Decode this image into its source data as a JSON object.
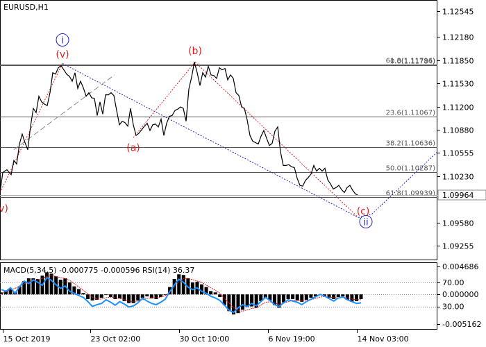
{
  "chart_data": {
    "type": "line",
    "symbol_label": "EURUSD,H1",
    "price_axis": {
      "range": [
        1.0905,
        1.127
      ],
      "ticks": [
        {
          "value": 1.12545,
          "label": "1.12545"
        },
        {
          "value": 1.1218,
          "label": "1.12180"
        },
        {
          "value": 1.1185,
          "label": "1.11850"
        },
        {
          "value": 1.1153,
          "label": "1.11530"
        },
        {
          "value": 1.112,
          "label": "1.11200"
        },
        {
          "value": 1.1088,
          "label": "1.10880"
        },
        {
          "value": 1.10555,
          "label": "1.10555"
        },
        {
          "value": 1.1023,
          "label": "1.10230"
        },
        {
          "value": 1.0958,
          "label": "1.09580"
        },
        {
          "value": 1.09255,
          "label": "1.09255"
        }
      ],
      "current_price": {
        "value": 1.09964,
        "label": "1.09964"
      }
    },
    "time_axis": {
      "range": [
        0,
        630
      ],
      "ticks": [
        {
          "t": 4,
          "label": "15 Oct 2019"
        },
        {
          "t": 130,
          "label": "23 Oct 02:00"
        },
        {
          "t": 258,
          "label": "30 Oct 10:00"
        },
        {
          "t": 386,
          "label": "6 Nov 19:00"
        },
        {
          "t": 514,
          "label": "14 Nov 03:00"
        }
      ]
    },
    "fibonacci_levels": [
      {
        "value": 1.11796,
        "label": "61.8(1.11796)"
      },
      {
        "value": 1.11784,
        "label": "0.0(1.11784)"
      },
      {
        "value": 1.11067,
        "label": "23.6(1.11067)"
      },
      {
        "value": 1.10636,
        "label": "38.2(1.10636)"
      },
      {
        "value": 1.10287,
        "label": "50.0(1.10287)"
      },
      {
        "value": 1.09939,
        "label": "61.8(1.09939)"
      }
    ],
    "wave_labels": [
      {
        "text": "i",
        "t": 90,
        "price": 1.1214,
        "color": "#2020c8",
        "circled": true
      },
      {
        "text": "ii",
        "t": 527,
        "price": 1.0959,
        "color": "#2020c8",
        "circled": true
      },
      {
        "text": "(v)",
        "t": 90,
        "price": 1.1194,
        "color": "#e02020",
        "circled": false
      },
      {
        "text": "(b)",
        "t": 281,
        "price": 1.1199,
        "color": "#e02020",
        "circled": false
      },
      {
        "text": "(a)",
        "t": 192,
        "price": 1.1063,
        "color": "#e02020",
        "circled": false
      },
      {
        "text": "(c)",
        "t": 523,
        "price": 1.0974,
        "color": "#e02020",
        "circled": false
      },
      {
        "text": "v)",
        "t": 5,
        "price": 1.0978,
        "color": "#e02020",
        "circled": false
      }
    ],
    "price_series": [
      [
        0,
        1.1
      ],
      [
        4,
        1.1028
      ],
      [
        10,
        1.1032
      ],
      [
        16,
        1.1025
      ],
      [
        20,
        1.1045
      ],
      [
        24,
        1.104
      ],
      [
        28,
        1.1068
      ],
      [
        32,
        1.1082
      ],
      [
        36,
        1.107
      ],
      [
        40,
        1.106
      ],
      [
        44,
        1.1093
      ],
      [
        48,
        1.1118
      ],
      [
        52,
        1.1112
      ],
      [
        56,
        1.1135
      ],
      [
        60,
        1.1127
      ],
      [
        64,
        1.1124
      ],
      [
        68,
        1.1122
      ],
      [
        72,
        1.114
      ],
      [
        76,
        1.1168
      ],
      [
        80,
        1.1166
      ],
      [
        84,
        1.1175
      ],
      [
        88,
        1.1178
      ],
      [
        92,
        1.1172
      ],
      [
        96,
        1.1166
      ],
      [
        100,
        1.1163
      ],
      [
        104,
        1.1156
      ],
      [
        108,
        1.1168
      ],
      [
        112,
        1.1146
      ],
      [
        116,
        1.1156
      ],
      [
        120,
        1.1147
      ],
      [
        124,
        1.1135
      ],
      [
        128,
        1.114
      ],
      [
        132,
        1.1133
      ],
      [
        136,
        1.1132
      ],
      [
        140,
        1.1108
      ],
      [
        144,
        1.1127
      ],
      [
        148,
        1.111
      ],
      [
        152,
        1.1137
      ],
      [
        156,
        1.1137
      ],
      [
        160,
        1.114
      ],
      [
        164,
        1.1136
      ],
      [
        168,
        1.1115
      ],
      [
        172,
        1.1095
      ],
      [
        176,
        1.11
      ],
      [
        180,
        1.1098
      ],
      [
        184,
        1.1093
      ],
      [
        188,
        1.1118
      ],
      [
        192,
        1.1095
      ],
      [
        196,
        1.108
      ],
      [
        200,
        1.1083
      ],
      [
        204,
        1.1088
      ],
      [
        208,
        1.1093
      ],
      [
        212,
        1.1097
      ],
      [
        216,
        1.1087
      ],
      [
        220,
        1.1095
      ],
      [
        224,
        1.1096
      ],
      [
        228,
        1.1092
      ],
      [
        232,
        1.1103
      ],
      [
        236,
        1.108
      ],
      [
        240,
        1.1097
      ],
      [
        244,
        1.1107
      ],
      [
        248,
        1.1108
      ],
      [
        252,
        1.1115
      ],
      [
        256,
        1.1117
      ],
      [
        260,
        1.112
      ],
      [
        264,
        1.1118
      ],
      [
        268,
        1.11
      ],
      [
        272,
        1.1145
      ],
      [
        276,
        1.1162
      ],
      [
        280,
        1.1183
      ],
      [
        284,
        1.1168
      ],
      [
        288,
        1.115
      ],
      [
        292,
        1.1168
      ],
      [
        296,
        1.1162
      ],
      [
        300,
        1.1177
      ],
      [
        304,
        1.1165
      ],
      [
        308,
        1.1164
      ],
      [
        312,
        1.116
      ],
      [
        316,
        1.1175
      ],
      [
        320,
        1.1172
      ],
      [
        324,
        1.1174
      ],
      [
        328,
        1.1158
      ],
      [
        332,
        1.1165
      ],
      [
        336,
        1.116
      ],
      [
        340,
        1.114
      ],
      [
        344,
        1.1136
      ],
      [
        348,
        1.112
      ],
      [
        352,
        1.1118
      ],
      [
        356,
        1.1102
      ],
      [
        360,
        1.108
      ],
      [
        364,
        1.1072
      ],
      [
        368,
        1.107
      ],
      [
        372,
        1.1068
      ],
      [
        376,
        1.1079
      ],
      [
        380,
        1.1087
      ],
      [
        384,
        1.1076
      ],
      [
        388,
        1.1066
      ],
      [
        392,
        1.1069
      ],
      [
        396,
        1.1086
      ],
      [
        400,
        1.1092
      ],
      [
        404,
        1.1057
      ],
      [
        408,
        1.1038
      ],
      [
        412,
        1.1038
      ],
      [
        416,
        1.1039
      ],
      [
        420,
        1.1036
      ],
      [
        424,
        1.1035
      ],
      [
        428,
        1.102
      ],
      [
        432,
        1.101
      ],
      [
        436,
        1.1009
      ],
      [
        440,
        1.1017
      ],
      [
        444,
        1.1021
      ],
      [
        448,
        1.1026
      ],
      [
        452,
        1.1038
      ],
      [
        456,
        1.103
      ],
      [
        460,
        1.1034
      ],
      [
        464,
        1.103
      ],
      [
        468,
        1.1034
      ],
      [
        472,
        1.1018
      ],
      [
        476,
        1.1012
      ],
      [
        480,
        1.1005
      ],
      [
        484,
        1.1007
      ],
      [
        488,
        1.101
      ],
      [
        492,
        1.1004
      ],
      [
        496,
        1.1
      ],
      [
        500,
        1.1007
      ],
      [
        504,
        1.101
      ],
      [
        508,
        1.1003
      ],
      [
        512,
        1.0998
      ],
      [
        516,
        1.0996
      ]
    ],
    "projection_line": [
      [
        516,
        1.0965
      ],
      [
        536,
        1.097
      ],
      [
        630,
        1.1057
      ]
    ],
    "indicator": {
      "label": "MACD(5,34,5) -0.000775 -0.000596 RSI(14) 36.37",
      "right_ticks": [
        {
          "label": "0.004686"
        },
        {
          "label": "70.00"
        },
        {
          "label": "0.000000"
        },
        {
          "label": "30.00"
        },
        {
          "label": "-0.005162"
        }
      ],
      "macd_histogram": [
        0.0003,
        0.0006,
        0.0009,
        0.0004,
        0.0012,
        0.002,
        0.0024,
        0.0024,
        0.0023,
        0.0028,
        0.0033,
        0.0031,
        0.0027,
        0.0022,
        0.0024,
        0.0018,
        0.0012,
        0.0008,
        0.0002,
        -0.0007,
        -0.0009,
        -0.0008,
        -0.0005,
        -0.0001,
        -0.0004,
        -0.0007,
        -0.0006,
        -0.001,
        -0.0013,
        -0.0013,
        -0.0009,
        -0.0005,
        -0.0003,
        -0.0006,
        -0.0007,
        -0.0004,
        -0.0001,
        0.0011,
        0.0023,
        0.003,
        0.0029,
        0.0024,
        0.0018,
        0.0019,
        0.0015,
        0.0011,
        0.0005,
        0.0003,
        -0.0004,
        -0.0016,
        -0.0025,
        -0.003,
        -0.0028,
        -0.0023,
        -0.0019,
        -0.0018,
        -0.002,
        -0.001,
        -0.0006,
        -0.0009,
        -0.0016,
        -0.002,
        -0.0012,
        -0.0007,
        -0.0007,
        -0.0009,
        -0.0011,
        -0.0008,
        -0.0005,
        -0.0003,
        0.0,
        -0.0002,
        -0.0005,
        -0.0007,
        -0.0004,
        -0.0003,
        -0.0008,
        -0.0011,
        -0.001,
        -0.0007
      ],
      "macd_signal": [
        0.0002,
        0.0004,
        0.0007,
        0.0009,
        0.0012,
        0.0016,
        0.0019,
        0.0021,
        0.0022,
        0.0024,
        0.0027,
        0.0028,
        0.0027,
        0.0025,
        0.0024,
        0.0021,
        0.0016,
        0.0011,
        0.0006,
        0.0001,
        -0.0004,
        -0.0007,
        -0.0007,
        -0.0005,
        -0.0004,
        -0.0005,
        -0.0006,
        -0.0008,
        -0.001,
        -0.0011,
        -0.001,
        -0.0008,
        -0.0006,
        -0.0005,
        -0.0005,
        -0.0004,
        -0.0002,
        0.0004,
        0.0011,
        0.0019,
        0.0024,
        0.0024,
        0.0022,
        0.002,
        0.0018,
        0.0014,
        0.001,
        0.0006,
        0.0002,
        -0.0006,
        -0.0013,
        -0.002,
        -0.0024,
        -0.0025,
        -0.0023,
        -0.0021,
        -0.002,
        -0.0016,
        -0.0012,
        -0.0011,
        -0.0013,
        -0.0015,
        -0.0013,
        -0.0011,
        -0.0009,
        -0.0009,
        -0.0009,
        -0.0009,
        -0.0008,
        -0.0006,
        -0.0004,
        -0.0003,
        -0.0004,
        -0.0005,
        -0.0005,
        -0.0004,
        -0.0005,
        -0.0007,
        -0.0008,
        -0.0008
      ],
      "rsi": [
        58,
        55,
        61,
        52,
        63,
        72,
        68,
        74,
        70,
        65,
        78,
        73,
        66,
        60,
        64,
        55,
        52,
        48,
        45,
        38,
        30,
        33,
        35,
        41,
        37,
        32,
        38,
        34,
        29,
        31,
        36,
        44,
        39,
        35,
        33,
        37,
        42,
        55,
        66,
        75,
        70,
        62,
        58,
        61,
        55,
        52,
        47,
        44,
        40,
        32,
        24,
        20,
        28,
        33,
        30,
        35,
        31,
        38,
        45,
        40,
        33,
        30,
        36,
        41,
        39,
        37,
        33,
        38,
        42,
        46,
        50,
        47,
        43,
        39,
        44,
        46,
        41,
        38,
        35,
        36
      ]
    }
  }
}
